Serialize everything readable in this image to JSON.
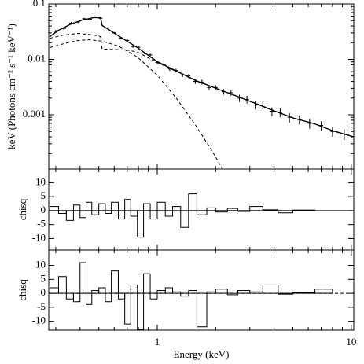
{
  "chart_data": [
    {
      "type": "line",
      "xlog": true,
      "ylog": true,
      "ylabel": "keV (Photons cm⁻² s⁻¹ keV⁻¹)",
      "xlim": [
        0.276,
        10.3
      ],
      "xticks": [
        1,
        10
      ],
      "xticks_minor": [
        0.3,
        0.4,
        0.5,
        0.6,
        0.7,
        0.8,
        0.9,
        2,
        3,
        4,
        5,
        6,
        7,
        8,
        9
      ],
      "ylim": [
        0.000105,
        0.1
      ],
      "yticks": [
        0.001,
        0.01,
        0.1
      ],
      "yticks_minor": [
        0.0002,
        0.0003,
        0.0004,
        0.0005,
        0.0006,
        0.0007,
        0.0008,
        0.0009,
        0.002,
        0.003,
        0.004,
        0.005,
        0.006,
        0.007,
        0.008,
        0.009,
        0.02,
        0.03,
        0.04,
        0.05,
        0.06,
        0.07,
        0.08,
        0.09
      ],
      "series": [
        {
          "style": "solid",
          "color": "#000000",
          "x": [
            0.28,
            0.31,
            0.36,
            0.41,
            0.47,
            0.51,
            0.52,
            0.63,
            0.79,
            1,
            1.26,
            1.59,
            2.01,
            2.54,
            3.2,
            4.04,
            5.1,
            6.45,
            8.1,
            10.3
          ],
          "values": [
            0.0258,
            0.0335,
            0.0435,
            0.051,
            0.0565,
            0.0565,
            0.041,
            0.0267,
            0.0163,
            0.0091,
            0.0061,
            0.0041,
            0.003,
            0.0022,
            0.00161,
            0.00116,
            0.00086,
            0.00069,
            0.00051,
            0.0004
          ]
        },
        {
          "style": "dashed",
          "color": "#000000",
          "x": [
            0.28,
            0.33,
            0.39,
            0.47,
            0.51,
            0.52,
            0.63,
            0.72,
            0.79,
            1,
            1.26,
            1.59,
            2.01,
            2.54,
            3.2,
            4.04,
            5.1,
            6.45,
            8.1,
            10.3
          ],
          "values": [
            0.0241,
            0.0275,
            0.0294,
            0.0275,
            0.0258,
            0.0153,
            0.015,
            0.0145,
            0.0135,
            0.0088,
            0.006,
            0.0041,
            0.003,
            0.0022,
            0.00161,
            0.00116,
            0.00086,
            0.00069,
            0.00051,
            0.0004
          ]
        },
        {
          "style": "dashed",
          "color": "#000000",
          "x": [
            0.28,
            0.33,
            0.39,
            0.45,
            0.52,
            0.63,
            0.79,
            1,
            1.26,
            1.59,
            1.92,
            2.17
          ],
          "values": [
            0.0163,
            0.0192,
            0.0219,
            0.0226,
            0.0213,
            0.0174,
            0.011,
            0.0052,
            0.00195,
            0.00062,
            0.00022,
            0.000105
          ]
        }
      ],
      "points": {
        "color": "#000000",
        "x": [
          0.3,
          0.33,
          0.36,
          0.39,
          0.42,
          0.45,
          0.48,
          0.51,
          0.56,
          0.6,
          0.65,
          0.7,
          0.75,
          0.8,
          0.86,
          0.92,
          1.0,
          1.08,
          1.16,
          1.25,
          1.35,
          1.45,
          1.57,
          1.7,
          1.85,
          2.0,
          2.2,
          2.4,
          2.65,
          2.9,
          3.2,
          3.5,
          3.9,
          4.3,
          4.8,
          5.4,
          6.1,
          7.0,
          8.0,
          9.2
        ],
        "values": [
          0.032,
          0.036,
          0.045,
          0.047,
          0.054,
          0.053,
          0.058,
          0.055,
          0.037,
          0.03,
          0.024,
          0.022,
          0.017,
          0.0165,
          0.013,
          0.012,
          0.0088,
          0.0081,
          0.0067,
          0.0063,
          0.0052,
          0.005,
          0.004,
          0.0039,
          0.0031,
          0.0031,
          0.0026,
          0.0025,
          0.002,
          0.0019,
          0.0015,
          0.0015,
          0.00115,
          0.0011,
          0.0009,
          0.00082,
          0.0007,
          0.00064,
          0.0005,
          0.00045
        ],
        "errors": [
          0.002,
          0.002,
          0.002,
          0.002,
          0.002,
          0.002,
          0.002,
          0.002,
          0.0015,
          0.0013,
          0.0011,
          0.001,
          0.0009,
          0.0008,
          0.0007,
          0.0007,
          0.0006,
          0.0005,
          0.0005,
          0.0005,
          0.0004,
          0.0004,
          0.0004,
          0.0004,
          0.0003,
          0.0003,
          0.0003,
          0.0003,
          0.0003,
          0.0003,
          0.00025,
          0.00025,
          0.0002,
          0.0002,
          0.00018,
          0.00015,
          0.00014,
          0.00012,
          0.0001,
          0.0001
        ]
      }
    },
    {
      "type": "histogram",
      "xlog": true,
      "ylabel": "chisq",
      "zero_line": "solid",
      "xlim": [
        0.276,
        10.3
      ],
      "xticks": [
        1,
        10
      ],
      "xticks_minor": [
        0.3,
        0.4,
        0.5,
        0.6,
        0.7,
        0.8,
        0.9,
        2,
        3,
        4,
        5,
        6,
        7,
        8,
        9
      ],
      "ylim": [
        -14.1,
        14.9
      ],
      "yticks": [
        -10,
        -5,
        0,
        5,
        10
      ],
      "bins": [
        0.28,
        0.31,
        0.34,
        0.37,
        0.4,
        0.43,
        0.46,
        0.5,
        0.54,
        0.58,
        0.63,
        0.68,
        0.73,
        0.79,
        0.85,
        0.92,
        1.0,
        1.1,
        1.2,
        1.32,
        1.45,
        1.6,
        1.8,
        2.0,
        2.3,
        2.6,
        3.0,
        3.5,
        4.2,
        5.0,
        6.5,
        8.0
      ],
      "values": [
        1.5,
        -1,
        -3.5,
        2,
        -2.5,
        3,
        -1.5,
        2.5,
        -1,
        3,
        -3,
        4,
        -2,
        -9.5,
        2.5,
        -3,
        3,
        -2,
        1.5,
        -6,
        6,
        -1.5,
        1,
        -0.5,
        0.8,
        -0.3,
        1.5,
        0.3,
        -0.8,
        0.2,
        0
      ]
    },
    {
      "type": "histogram",
      "xlog": true,
      "ylabel": "chisq",
      "xlabel": "Energy (keV)",
      "zero_line": "dashed",
      "xlim": [
        0.276,
        10.3
      ],
      "xticks": [
        1,
        10
      ],
      "xticks_minor": [
        0.3,
        0.4,
        0.5,
        0.6,
        0.7,
        0.8,
        0.9,
        2,
        3,
        4,
        5,
        6,
        7,
        8,
        9
      ],
      "ylim": [
        -13.2,
        15.5
      ],
      "yticks": [
        -10,
        -5,
        0,
        5,
        10
      ],
      "bins": [
        0.28,
        0.31,
        0.34,
        0.37,
        0.4,
        0.43,
        0.46,
        0.5,
        0.54,
        0.58,
        0.63,
        0.68,
        0.73,
        0.79,
        0.85,
        0.92,
        1.0,
        1.1,
        1.2,
        1.32,
        1.45,
        1.6,
        1.8,
        2.0,
        2.3,
        2.6,
        3.0,
        3.5,
        4.2,
        5.0,
        6.5,
        8.0
      ],
      "values": [
        2,
        6,
        -2,
        -3,
        11,
        -4,
        1,
        2,
        -3,
        8,
        -2,
        -11,
        3,
        -13,
        7,
        -2,
        1,
        2,
        0.5,
        -1,
        1,
        -12,
        0.5,
        1.5,
        -0.5,
        1,
        0.5,
        3,
        -0.3,
        0.2,
        1.5
      ]
    }
  ]
}
